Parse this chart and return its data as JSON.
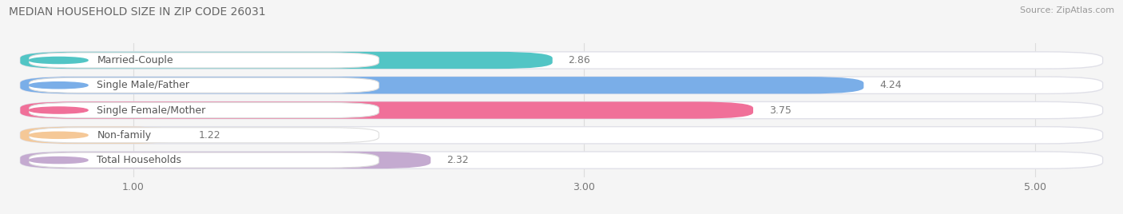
{
  "title": "MEDIAN HOUSEHOLD SIZE IN ZIP CODE 26031",
  "source": "Source: ZipAtlas.com",
  "categories": [
    "Married-Couple",
    "Single Male/Father",
    "Single Female/Mother",
    "Non-family",
    "Total Households"
  ],
  "values": [
    2.86,
    4.24,
    3.75,
    1.22,
    2.32
  ],
  "bar_colors": [
    "#52c5c5",
    "#7aaee8",
    "#f07099",
    "#f5c897",
    "#c4aad0"
  ],
  "label_dot_colors": [
    "#52c5c5",
    "#7aaee8",
    "#f07099",
    "#f5c897",
    "#c4aad0"
  ],
  "xlim_data": [
    0.5,
    5.3
  ],
  "xticks": [
    1.0,
    3.0,
    5.0
  ],
  "xticklabels": [
    "1.00",
    "3.00",
    "5.00"
  ],
  "title_fontsize": 10,
  "label_fontsize": 9,
  "value_fontsize": 9,
  "source_fontsize": 8,
  "background_color": "#f5f5f5",
  "bar_bg_color": "#ffffff",
  "bar_bg_edge_color": "#e0e0e8"
}
